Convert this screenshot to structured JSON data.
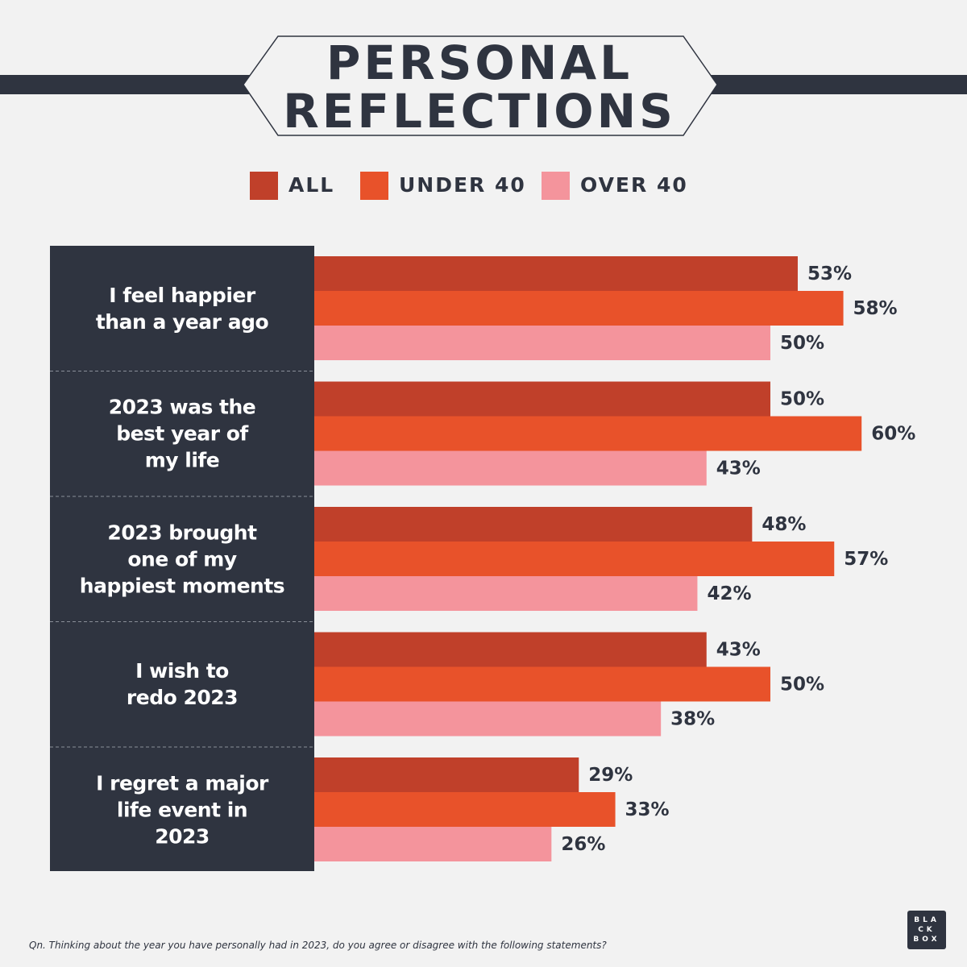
{
  "title": "PERSONAL\nREFLECTIONS",
  "chart_data": {
    "type": "bar",
    "orientation": "horizontal",
    "categories": [
      "I feel happier\nthan a year ago",
      "2023 was the\nbest year of\nmy life",
      "2023 brought\none of my\nhappiest moments",
      "I wish to\nredo 2023",
      "I regret a major\nlife event in\n2023"
    ],
    "series": [
      {
        "name": "ALL",
        "color": "#c0402a",
        "values": [
          53,
          50,
          48,
          43,
          29
        ],
        "value_labels": [
          "53%",
          "50%",
          "48%",
          "43%",
          "29%"
        ]
      },
      {
        "name": "UNDER 40",
        "color": "#e8522a",
        "values": [
          58,
          60,
          57,
          50,
          33
        ],
        "value_labels": [
          "58%",
          "60%",
          "57%",
          "50%",
          "33%"
        ]
      },
      {
        "name": "OVER 40",
        "color": "#f4949c",
        "values": [
          50,
          43,
          42,
          38,
          26
        ],
        "value_labels": [
          "50%",
          "43%",
          "42%",
          "38%",
          "26%"
        ]
      }
    ]
  },
  "footnote": "Qn. Thinking about the year you have personally had in 2023, do you agree or disagree with the following statements?",
  "logo": "BLA\nCK\nBOX"
}
